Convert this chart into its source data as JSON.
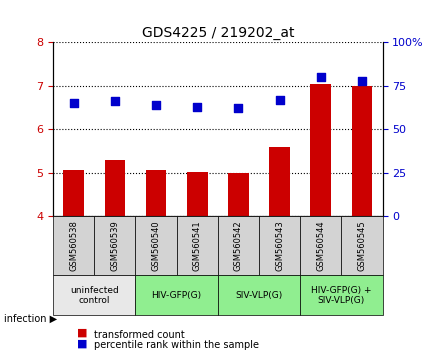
{
  "title": "GDS4225 / 219202_at",
  "samples": [
    "GSM560538",
    "GSM560539",
    "GSM560540",
    "GSM560541",
    "GSM560542",
    "GSM560543",
    "GSM560544",
    "GSM560545"
  ],
  "bar_values": [
    5.05,
    5.3,
    5.05,
    5.02,
    4.98,
    5.6,
    7.05,
    7.0
  ],
  "dot_values": [
    65,
    66,
    64,
    63,
    62,
    67,
    80,
    78
  ],
  "bar_color": "#cc0000",
  "dot_color": "#0000cc",
  "ylim_left": [
    4,
    8
  ],
  "ylim_right": [
    0,
    100
  ],
  "yticks_left": [
    4,
    5,
    6,
    7,
    8
  ],
  "yticks_right": [
    0,
    25,
    50,
    75,
    100
  ],
  "yticklabels_right": [
    "0",
    "25",
    "50",
    "75",
    "100%"
  ],
  "group_labels": [
    "uninfected\ncontrol",
    "HIV-GFP(G)",
    "SIV-VLP(G)",
    "HIV-GFP(G) +\nSIV-VLP(G)"
  ],
  "group_ranges": [
    [
      0,
      2
    ],
    [
      2,
      4
    ],
    [
      4,
      6
    ],
    [
      6,
      8
    ]
  ],
  "group_colors": [
    "#e8e8e8",
    "#90ee90",
    "#90ee90",
    "#90ee90"
  ],
  "sample_bg_color": "#d3d3d3",
  "infection_label": "infection",
  "legend_bar_label": "transformed count",
  "legend_dot_label": "percentile rank within the sample",
  "bar_bottom": 4
}
